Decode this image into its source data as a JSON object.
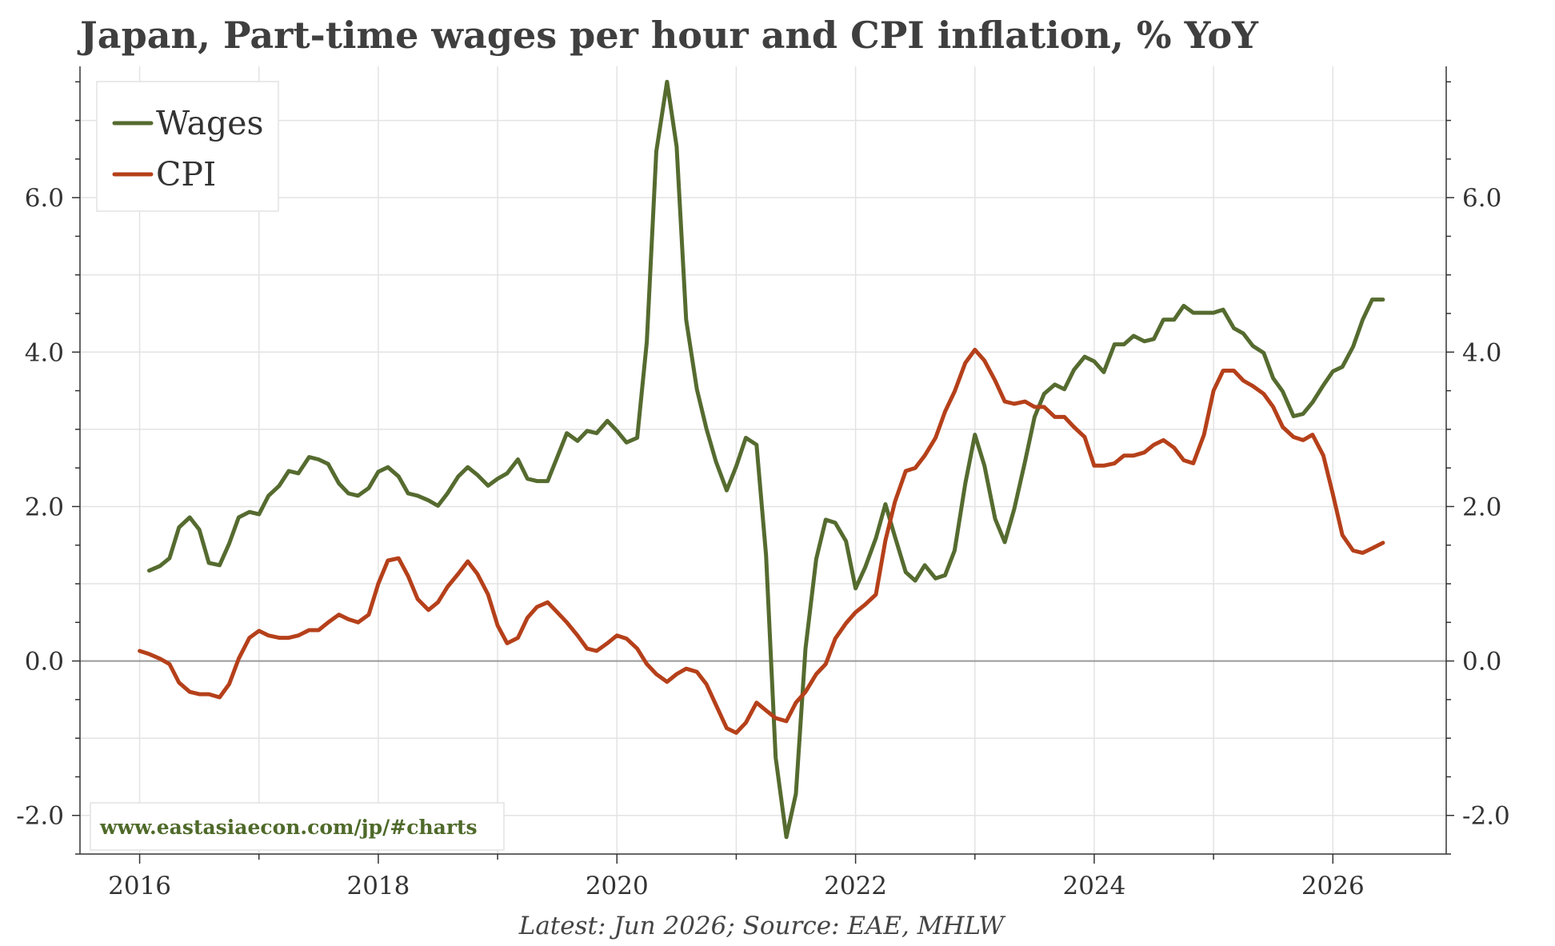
{
  "title": "Japan, Part-time wages per hour and CPI inflation, % YoY",
  "source_note": "Latest: Jun 2026; Source: EAE, MHLW",
  "watermark": "www.eastasiaecon.com/jp/#charts",
  "colors": {
    "wages": "#556b2f",
    "cpi": "#b5401a",
    "grid": "#e3e3e3",
    "zero_line": "#9a9a9a",
    "axis": "#333333"
  },
  "chart_data": {
    "type": "line",
    "title": "Japan, Part-time wages per hour and CPI inflation, % YoY",
    "xlabel": "",
    "ylabel": "",
    "x_ticks": [
      "2016",
      "2018",
      "2020",
      "2022",
      "2024",
      "2026"
    ],
    "y_ticks": [
      "-2.0",
      "0.0",
      "2.0",
      "4.0",
      "6.0"
    ],
    "xlim": [
      2015.5,
      2026.95
    ],
    "ylim": [
      -2.5,
      7.7
    ],
    "grid": true,
    "legend_position": "top-left",
    "legend": [
      "Wages",
      "CPI"
    ],
    "series": [
      {
        "name": "Wages",
        "color": "#556b2f",
        "points": [
          [
            2016.08,
            1.17
          ],
          [
            2016.17,
            1.23
          ],
          [
            2016.25,
            1.33
          ],
          [
            2016.33,
            1.73
          ],
          [
            2016.42,
            1.86
          ],
          [
            2016.5,
            1.7
          ],
          [
            2016.58,
            1.27
          ],
          [
            2016.67,
            1.24
          ],
          [
            2016.75,
            1.52
          ],
          [
            2016.83,
            1.86
          ],
          [
            2016.92,
            1.93
          ],
          [
            2017.0,
            1.9
          ],
          [
            2017.08,
            2.14
          ],
          [
            2017.17,
            2.27
          ],
          [
            2017.25,
            2.46
          ],
          [
            2017.33,
            2.43
          ],
          [
            2017.42,
            2.64
          ],
          [
            2017.5,
            2.61
          ],
          [
            2017.58,
            2.55
          ],
          [
            2017.67,
            2.3
          ],
          [
            2017.75,
            2.17
          ],
          [
            2017.83,
            2.14
          ],
          [
            2017.92,
            2.24
          ],
          [
            2018.0,
            2.45
          ],
          [
            2018.08,
            2.51
          ],
          [
            2018.17,
            2.39
          ],
          [
            2018.25,
            2.17
          ],
          [
            2018.33,
            2.14
          ],
          [
            2018.42,
            2.08
          ],
          [
            2018.5,
            2.01
          ],
          [
            2018.58,
            2.17
          ],
          [
            2018.67,
            2.39
          ],
          [
            2018.75,
            2.51
          ],
          [
            2018.83,
            2.41
          ],
          [
            2018.92,
            2.27
          ],
          [
            2019.0,
            2.36
          ],
          [
            2019.08,
            2.43
          ],
          [
            2019.17,
            2.61
          ],
          [
            2019.25,
            2.36
          ],
          [
            2019.33,
            2.33
          ],
          [
            2019.42,
            2.33
          ],
          [
            2019.5,
            2.64
          ],
          [
            2019.58,
            2.95
          ],
          [
            2019.67,
            2.85
          ],
          [
            2019.75,
            2.98
          ],
          [
            2019.83,
            2.95
          ],
          [
            2019.92,
            3.11
          ],
          [
            2020.0,
            2.98
          ],
          [
            2020.08,
            2.83
          ],
          [
            2020.17,
            2.89
          ],
          [
            2020.25,
            4.13
          ],
          [
            2020.33,
            6.6
          ],
          [
            2020.42,
            7.5
          ],
          [
            2020.5,
            6.66
          ],
          [
            2020.58,
            4.42
          ],
          [
            2020.67,
            3.52
          ],
          [
            2020.75,
            3.01
          ],
          [
            2020.83,
            2.58
          ],
          [
            2020.92,
            2.21
          ],
          [
            2021.0,
            2.52
          ],
          [
            2021.08,
            2.89
          ],
          [
            2021.17,
            2.8
          ],
          [
            2021.25,
            1.37
          ],
          [
            2021.33,
            -1.25
          ],
          [
            2021.42,
            -2.28
          ],
          [
            2021.5,
            -1.72
          ],
          [
            2021.58,
            0.16
          ],
          [
            2021.67,
            1.32
          ],
          [
            2021.75,
            1.83
          ],
          [
            2021.83,
            1.79
          ],
          [
            2021.92,
            1.55
          ],
          [
            2022.0,
            0.94
          ],
          [
            2022.08,
            1.21
          ],
          [
            2022.17,
            1.59
          ],
          [
            2022.25,
            2.03
          ],
          [
            2022.33,
            1.61
          ],
          [
            2022.42,
            1.15
          ],
          [
            2022.5,
            1.04
          ],
          [
            2022.58,
            1.24
          ],
          [
            2022.67,
            1.07
          ],
          [
            2022.75,
            1.11
          ],
          [
            2022.83,
            1.43
          ],
          [
            2022.92,
            2.3
          ],
          [
            2023.0,
            2.93
          ],
          [
            2023.08,
            2.53
          ],
          [
            2023.17,
            1.84
          ],
          [
            2023.25,
            1.54
          ],
          [
            2023.33,
            1.97
          ],
          [
            2023.42,
            2.58
          ],
          [
            2023.5,
            3.16
          ],
          [
            2023.58,
            3.46
          ],
          [
            2023.67,
            3.58
          ],
          [
            2023.75,
            3.52
          ],
          [
            2023.83,
            3.77
          ],
          [
            2023.92,
            3.94
          ],
          [
            2024.0,
            3.88
          ],
          [
            2024.08,
            3.74
          ],
          [
            2024.17,
            4.1
          ],
          [
            2024.25,
            4.1
          ],
          [
            2024.33,
            4.21
          ],
          [
            2024.42,
            4.14
          ],
          [
            2024.5,
            4.17
          ],
          [
            2024.58,
            4.42
          ],
          [
            2024.67,
            4.42
          ],
          [
            2024.75,
            4.6
          ],
          [
            2024.83,
            4.51
          ],
          [
            2024.92,
            4.51
          ],
          [
            2025.0,
            4.51
          ],
          [
            2025.08,
            4.55
          ],
          [
            2025.17,
            4.31
          ],
          [
            2025.25,
            4.24
          ],
          [
            2025.33,
            4.08
          ],
          [
            2025.42,
            3.99
          ],
          [
            2025.5,
            3.66
          ],
          [
            2025.58,
            3.49
          ],
          [
            2025.67,
            3.17
          ],
          [
            2025.75,
            3.2
          ],
          [
            2025.83,
            3.35
          ],
          [
            2025.92,
            3.57
          ],
          [
            2026.0,
            3.75
          ],
          [
            2026.08,
            3.81
          ],
          [
            2026.17,
            4.07
          ],
          [
            2026.25,
            4.42
          ],
          [
            2026.33,
            4.68
          ],
          [
            2026.42,
            4.68
          ]
        ]
      },
      {
        "name": "CPI",
        "color": "#b5401a",
        "points": [
          [
            2016.0,
            0.13
          ],
          [
            2016.08,
            0.09
          ],
          [
            2016.17,
            0.03
          ],
          [
            2016.25,
            -0.04
          ],
          [
            2016.33,
            -0.28
          ],
          [
            2016.42,
            -0.4
          ],
          [
            2016.5,
            -0.43
          ],
          [
            2016.58,
            -0.43
          ],
          [
            2016.67,
            -0.47
          ],
          [
            2016.75,
            -0.3
          ],
          [
            2016.83,
            0.03
          ],
          [
            2016.92,
            0.3
          ],
          [
            2017.0,
            0.39
          ],
          [
            2017.08,
            0.33
          ],
          [
            2017.17,
            0.3
          ],
          [
            2017.25,
            0.3
          ],
          [
            2017.33,
            0.33
          ],
          [
            2017.42,
            0.4
          ],
          [
            2017.5,
            0.4
          ],
          [
            2017.58,
            0.5
          ],
          [
            2017.67,
            0.6
          ],
          [
            2017.75,
            0.54
          ],
          [
            2017.83,
            0.5
          ],
          [
            2017.92,
            0.6
          ],
          [
            2018.0,
            1.0
          ],
          [
            2018.08,
            1.3
          ],
          [
            2018.17,
            1.33
          ],
          [
            2018.25,
            1.1
          ],
          [
            2018.33,
            0.8
          ],
          [
            2018.42,
            0.66
          ],
          [
            2018.5,
            0.76
          ],
          [
            2018.58,
            0.96
          ],
          [
            2018.67,
            1.13
          ],
          [
            2018.75,
            1.29
          ],
          [
            2018.83,
            1.13
          ],
          [
            2018.92,
            0.86
          ],
          [
            2019.0,
            0.46
          ],
          [
            2019.08,
            0.23
          ],
          [
            2019.17,
            0.3
          ],
          [
            2019.25,
            0.56
          ],
          [
            2019.33,
            0.7
          ],
          [
            2019.42,
            0.76
          ],
          [
            2019.5,
            0.63
          ],
          [
            2019.58,
            0.5
          ],
          [
            2019.67,
            0.33
          ],
          [
            2019.75,
            0.16
          ],
          [
            2019.83,
            0.13
          ],
          [
            2019.92,
            0.23
          ],
          [
            2020.0,
            0.33
          ],
          [
            2020.08,
            0.29
          ],
          [
            2020.17,
            0.16
          ],
          [
            2020.25,
            -0.04
          ],
          [
            2020.33,
            -0.17
          ],
          [
            2020.42,
            -0.27
          ],
          [
            2020.5,
            -0.17
          ],
          [
            2020.58,
            -0.1
          ],
          [
            2020.67,
            -0.14
          ],
          [
            2020.75,
            -0.3
          ],
          [
            2020.83,
            -0.57
          ],
          [
            2020.92,
            -0.87
          ],
          [
            2021.0,
            -0.93
          ],
          [
            2021.08,
            -0.8
          ],
          [
            2021.17,
            -0.54
          ],
          [
            2021.25,
            -0.64
          ],
          [
            2021.33,
            -0.74
          ],
          [
            2021.42,
            -0.78
          ],
          [
            2021.5,
            -0.54
          ],
          [
            2021.58,
            -0.4
          ],
          [
            2021.67,
            -0.17
          ],
          [
            2021.75,
            -0.04
          ],
          [
            2021.83,
            0.29
          ],
          [
            2021.92,
            0.49
          ],
          [
            2022.0,
            0.63
          ],
          [
            2022.08,
            0.73
          ],
          [
            2022.17,
            0.86
          ],
          [
            2022.25,
            1.56
          ],
          [
            2022.33,
            2.06
          ],
          [
            2022.42,
            2.46
          ],
          [
            2022.5,
            2.5
          ],
          [
            2022.58,
            2.66
          ],
          [
            2022.67,
            2.89
          ],
          [
            2022.75,
            3.23
          ],
          [
            2022.83,
            3.49
          ],
          [
            2022.92,
            3.86
          ],
          [
            2023.0,
            4.03
          ],
          [
            2023.08,
            3.89
          ],
          [
            2023.17,
            3.63
          ],
          [
            2023.25,
            3.36
          ],
          [
            2023.33,
            3.33
          ],
          [
            2023.42,
            3.36
          ],
          [
            2023.5,
            3.29
          ],
          [
            2023.58,
            3.29
          ],
          [
            2023.67,
            3.16
          ],
          [
            2023.75,
            3.16
          ],
          [
            2023.83,
            3.03
          ],
          [
            2023.92,
            2.9
          ],
          [
            2024.0,
            2.53
          ],
          [
            2024.08,
            2.53
          ],
          [
            2024.17,
            2.56
          ],
          [
            2024.25,
            2.66
          ],
          [
            2024.33,
            2.66
          ],
          [
            2024.42,
            2.7
          ],
          [
            2024.5,
            2.8
          ],
          [
            2024.58,
            2.86
          ],
          [
            2024.67,
            2.76
          ],
          [
            2024.75,
            2.6
          ],
          [
            2024.83,
            2.56
          ],
          [
            2024.92,
            2.93
          ],
          [
            2025.0,
            3.5
          ],
          [
            2025.08,
            3.76
          ],
          [
            2025.17,
            3.76
          ],
          [
            2025.25,
            3.63
          ],
          [
            2025.33,
            3.56
          ],
          [
            2025.42,
            3.46
          ],
          [
            2025.5,
            3.29
          ],
          [
            2025.58,
            3.03
          ],
          [
            2025.67,
            2.9
          ],
          [
            2025.75,
            2.86
          ],
          [
            2025.83,
            2.93
          ],
          [
            2025.92,
            2.66
          ],
          [
            2026.0,
            2.16
          ],
          [
            2026.08,
            1.63
          ],
          [
            2026.17,
            1.43
          ],
          [
            2026.25,
            1.4
          ],
          [
            2026.33,
            1.46
          ],
          [
            2026.42,
            1.53
          ]
        ]
      }
    ]
  }
}
